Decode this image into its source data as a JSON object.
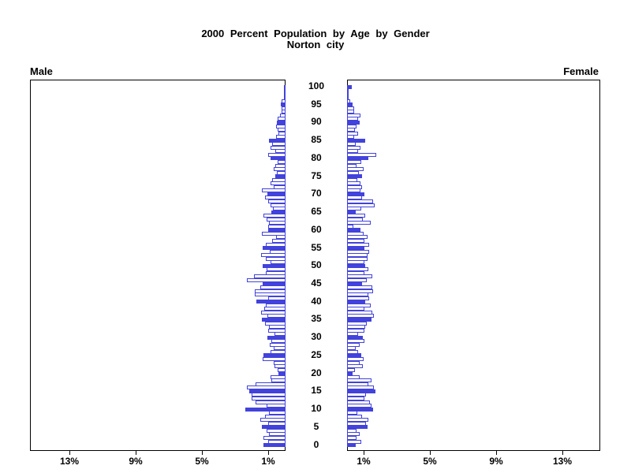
{
  "title": {
    "line1": "2000 Percent Population by Age by Gender",
    "line2": "Norton city"
  },
  "panels": {
    "left_header": "Male",
    "right_header": "Female"
  },
  "axis": {
    "age_tick_labels": [
      0,
      5,
      10,
      15,
      20,
      25,
      30,
      35,
      40,
      45,
      50,
      55,
      60,
      65,
      70,
      75,
      80,
      85,
      90,
      95,
      100
    ],
    "pct_tick_values": [
      1,
      5,
      9,
      13
    ],
    "pct_tick_labels": [
      "1%",
      "5%",
      "9%",
      "13%"
    ],
    "pct_axis_max": 15.4
  },
  "colors": {
    "bar_blue": "#4242DC",
    "bar_fill_normal": "#FFFFFF",
    "frame": "#000000",
    "text": "#000000"
  },
  "chart_data": {
    "type": "bar",
    "subtype": "population-pyramid",
    "title": "2000 Percent Population by Age by Gender",
    "subtitle": "Norton city",
    "unit": "%",
    "age_start": 0,
    "age_end": 100,
    "highlight_every": 5,
    "xlim_each_side": [
      0,
      15.4
    ],
    "series": [
      {
        "name": "Male",
        "side": "left",
        "values": [
          1.35,
          1.05,
          1.32,
          1.0,
          1.16,
          1.41,
          1.05,
          1.5,
          1.25,
          1.0,
          2.43,
          1.13,
          1.79,
          2.05,
          2.05,
          2.21,
          2.32,
          1.79,
          0.84,
          0.9,
          0.44,
          0.49,
          0.65,
          0.73,
          1.37,
          1.32,
          0.9,
          0.7,
          0.97,
          0.86,
          1.08,
          0.65,
          1.05,
          1.02,
          1.24,
          1.41,
          1.08,
          1.49,
          1.29,
          1.21,
          1.76,
          1.05,
          1.87,
          1.87,
          1.52,
          1.4,
          2.35,
          1.92,
          1.21,
          1.13,
          1.37,
          0.89,
          1.17,
          1.49,
          0.97,
          1.4,
          1.21,
          0.81,
          0.57,
          1.41,
          1.05,
          1.05,
          1.02,
          1.13,
          1.32,
          0.84,
          0.76,
          0.89,
          1.05,
          1.24,
          1.08,
          1.44,
          0.73,
          0.92,
          0.81,
          0.6,
          0.54,
          0.73,
          0.6,
          0.49,
          0.89,
          1.05,
          0.6,
          0.89,
          0.81,
          1.02,
          0.57,
          0.44,
          0.49,
          0.57,
          0.54,
          0.49,
          0.33,
          0.25,
          0.22,
          0.29,
          0.22,
          0.08,
          0.05,
          0.05,
          0.05
        ]
      },
      {
        "name": "Female",
        "side": "right",
        "values": [
          0.52,
          0.84,
          0.59,
          0.75,
          0.56,
          1.22,
          1.16,
          1.27,
          0.9,
          0.63,
          1.59,
          1.48,
          1.38,
          1.06,
          1.16,
          1.7,
          1.63,
          1.27,
          1.48,
          0.75,
          0.32,
          0.48,
          0.95,
          0.75,
          1.0,
          0.84,
          0.66,
          0.52,
          0.75,
          1.06,
          0.95,
          0.68,
          1.03,
          1.11,
          1.19,
          1.48,
          1.63,
          1.54,
          1.03,
          1.43,
          1.11,
          1.32,
          1.27,
          1.59,
          1.54,
          0.9,
          1.19,
          1.51,
          1.06,
          1.27,
          1.11,
          1.03,
          1.22,
          1.22,
          1.32,
          1.03,
          1.32,
          1.03,
          1.22,
          1.0,
          0.79,
          0.37,
          1.43,
          0.95,
          1.11,
          0.52,
          0.84,
          1.67,
          1.56,
          0.92,
          1.05,
          0.79,
          0.92,
          0.79,
          0.63,
          0.89,
          0.73,
          1.0,
          0.57,
          0.84,
          1.27,
          1.76,
          0.68,
          0.79,
          0.52,
          1.08,
          0.41,
          0.68,
          0.48,
          0.57,
          0.76,
          0.68,
          0.79,
          0.41,
          0.44,
          0.32,
          0.21,
          0.05,
          0.03,
          0.03,
          0.29
        ]
      }
    ]
  }
}
